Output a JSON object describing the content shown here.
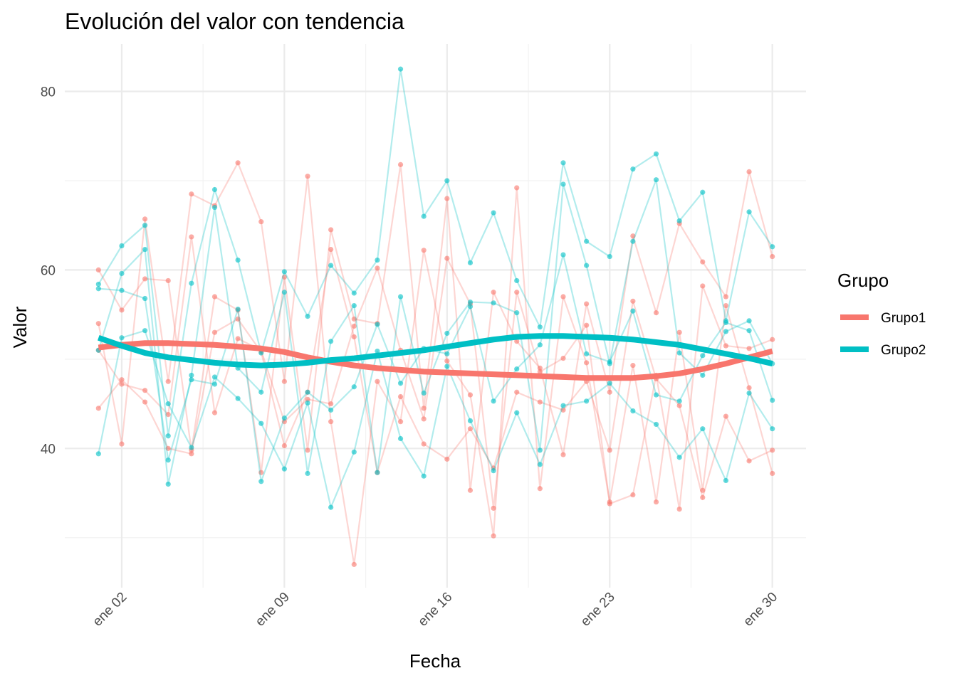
{
  "chart_data": {
    "type": "line",
    "title": "Evolución del valor con tendencia",
    "x_label": "Fecha",
    "y_label": "Valor",
    "legend_title": "Grupo",
    "x": [
      1,
      2,
      3,
      4,
      5,
      6,
      7,
      8,
      9,
      10,
      11,
      12,
      13,
      14,
      15,
      16,
      17,
      18,
      19,
      20,
      21,
      22,
      23,
      24,
      25,
      26,
      27,
      28,
      29,
      30
    ],
    "xlim": [
      -0.45,
      31.45
    ],
    "xticks": [
      {
        "value": 2,
        "label": "ene 02"
      },
      {
        "value": 9,
        "label": "ene 09"
      },
      {
        "value": 16,
        "label": "ene 16"
      },
      {
        "value": 23,
        "label": "ene 23"
      },
      {
        "value": 30,
        "label": "ene 30"
      }
    ],
    "xminor": [
      5.5,
      12.5,
      19.5,
      26.5
    ],
    "ylim": [
      24.4,
      85.3
    ],
    "yticks": [
      40,
      60,
      80
    ],
    "yminor": [
      30,
      50,
      70
    ],
    "grid": true,
    "series": [
      {
        "name": "Grupo1",
        "color": "#F8766D",
        "lines": [
          [
            60,
            55.5,
            59,
            58.8,
            39.8,
            57,
            55.5,
            37.3,
            59.2,
            39.8,
            64.5,
            54.5,
            54,
            71.8,
            44.5,
            68,
            35.3,
            57.5,
            52,
            49,
            39.3,
            56.2,
            46.3,
            63.8,
            55.2,
            65.2,
            60.9,
            57,
            71,
            61.5
          ],
          [
            54,
            40.5,
            65.7,
            47.5,
            68.5,
            67.2,
            72,
            65.4,
            47.5,
            70.5,
            43,
            27,
            47.5,
            43,
            62.2,
            49.8,
            46,
            30.2,
            69.2,
            35.5,
            57,
            49.6,
            34,
            49.3,
            34,
            53,
            35.3,
            56,
            46.8,
            37.2
          ],
          [
            51,
            47.2,
            46.5,
            43.8,
            63.7,
            44,
            52.3,
            51,
            43,
            45.5,
            45,
            53.7,
            60.2,
            51,
            43.3,
            61.3,
            56.2,
            33.3,
            57.5,
            48.6,
            50.1,
            53.8,
            33.8,
            34.8,
            48.2,
            33.2,
            58.2,
            51.5,
            51.2,
            52.2
          ],
          [
            44.5,
            47.7,
            45.2,
            40,
            39.4,
            53,
            54.5,
            50.8,
            40.3,
            46.3,
            62.3,
            52.5,
            37.3,
            45.8,
            40.5,
            38.8,
            42.2,
            37.8,
            46.3,
            45.2,
            44.3,
            47.5,
            39.8,
            56.5,
            47.8,
            44.8,
            34.5,
            43.6,
            38.6,
            39.8
          ]
        ],
        "trend": [
          51.3,
          51.6,
          51.8,
          51.8,
          51.7,
          51.6,
          51.4,
          51.2,
          50.8,
          50.2,
          49.7,
          49.3,
          49.0,
          48.8,
          48.6,
          48.5,
          48.4,
          48.3,
          48.2,
          48.1,
          48.0,
          47.9,
          47.9,
          47.9,
          48.1,
          48.4,
          48.9,
          49.5,
          50.2,
          50.9
        ]
      },
      {
        "name": "Grupo2",
        "color": "#00BFC4",
        "lines": [
          [
            58.4,
            62.7,
            65,
            41.4,
            58.5,
            69,
            61.1,
            50.7,
            59.8,
            54.8,
            60.5,
            57.4,
            61.1,
            82.5,
            66,
            70,
            60.8,
            66.4,
            58.8,
            53.6,
            72,
            63.2,
            61.5,
            71.3,
            73,
            65.5,
            68.7,
            54.3,
            66.5,
            62.6
          ],
          [
            51,
            59.6,
            62.3,
            36,
            48.2,
            67,
            49,
            46.3,
            57.5,
            37.2,
            52,
            56,
            37.3,
            57,
            46.2,
            52.9,
            56.4,
            56.3,
            55.2,
            39.8,
            69.6,
            60.5,
            49.5,
            63.2,
            70.1,
            50.7,
            48.2,
            53.1,
            54.3,
            49.5
          ],
          [
            57.9,
            57.7,
            56.8,
            38.7,
            47.7,
            47.2,
            55.6,
            36.3,
            43.4,
            46.3,
            44.3,
            46.9,
            53.9,
            47.3,
            51.2,
            50.6,
            55.9,
            45.3,
            48.9,
            51.6,
            61.7,
            50.6,
            49.7,
            55.4,
            46,
            45.3,
            50.4,
            54.1,
            53.2,
            45.4
          ],
          [
            39.4,
            52.4,
            53.2,
            45,
            40.1,
            48,
            45.6,
            42.8,
            37.7,
            45.1,
            33.4,
            39.6,
            50.9,
            41.1,
            36.9,
            49.2,
            43.1,
            37.5,
            44,
            38.2,
            44.8,
            45.3,
            47.3,
            44.2,
            42.7,
            39,
            42.2,
            36.4,
            46.2,
            42.2
          ]
        ],
        "trend": [
          52.4,
          51.5,
          50.7,
          50.2,
          49.9,
          49.6,
          49.4,
          49.3,
          49.4,
          49.6,
          49.9,
          50.1,
          50.4,
          50.7,
          51.0,
          51.4,
          51.8,
          52.2,
          52.5,
          52.6,
          52.6,
          52.5,
          52.4,
          52.2,
          51.9,
          51.6,
          51.1,
          50.6,
          50.1,
          49.5
        ]
      }
    ]
  }
}
